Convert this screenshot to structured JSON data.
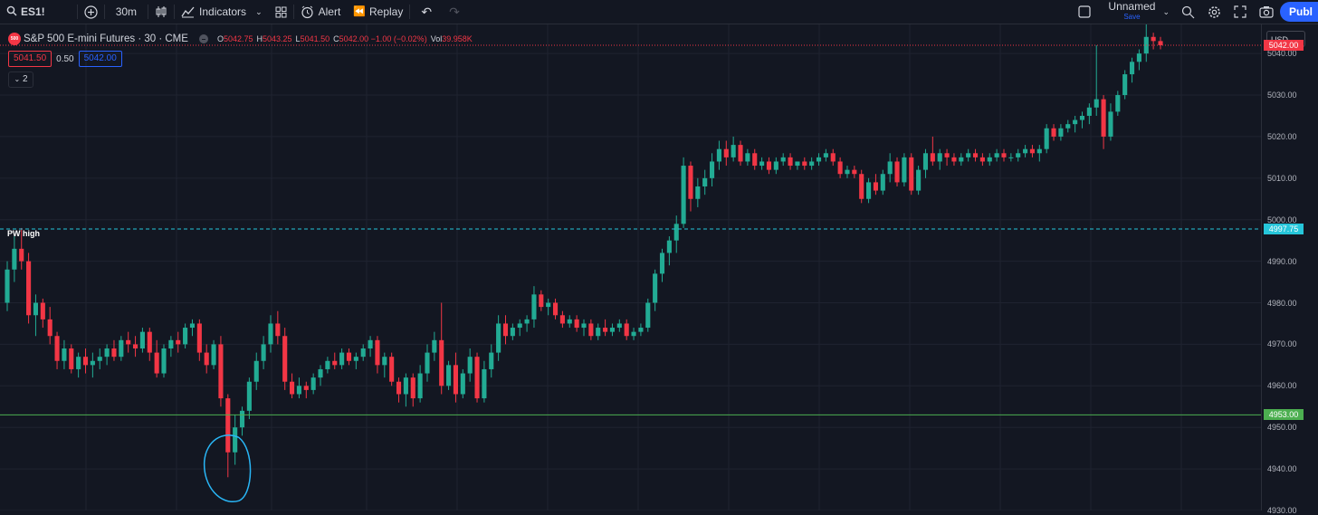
{
  "toolbar": {
    "symbol": "ES1!",
    "interval": "30m",
    "indicators_label": "Indicators",
    "alert_label": "Alert",
    "replay_label": "Replay",
    "layout_name": "Unnamed",
    "layout_save": "Save",
    "publish_label": "Publ"
  },
  "legend": {
    "badge": "500",
    "title": "S&P 500 E-mini Futures · 30 · CME",
    "open_key": "O",
    "open": "5042.75",
    "high_key": "H",
    "high": "5043.25",
    "low_key": "L",
    "low": "5041.50",
    "close_key": "C",
    "close": "5042.00 −1.00 (−0.02%)",
    "vol_key": "Vol",
    "vol": "39.958K"
  },
  "quotes": {
    "bid": "5041.50",
    "spread": "0.50",
    "ask": "5042.00"
  },
  "collapse_label": "2",
  "currency": "USD",
  "annotations": {
    "pw_high_label": "PW high"
  },
  "colors": {
    "up": "#22ab94",
    "down": "#f23645",
    "pw_high": "#26c6da",
    "support": "#4caf50",
    "circle": "#29b6f6",
    "background": "#131722"
  },
  "price_scale": {
    "ticks": [
      "5040.00",
      "5030.00",
      "5020.00",
      "5010.00",
      "5000.00",
      "4990.00",
      "4980.00",
      "4970.00",
      "4960.00",
      "4950.00",
      "4940.00",
      "4930.00"
    ],
    "last_price": "5042.00",
    "pw_high": "4997.75",
    "support": "4953.00"
  },
  "chart_data": {
    "type": "candlestick",
    "y_range": [
      4930,
      5047
    ],
    "horizontal_lines": [
      {
        "label": "PW high",
        "value": 4997.75
      },
      {
        "label": "",
        "value": 4953.0
      },
      {
        "label": "",
        "value": 5042.0
      }
    ],
    "candles": [
      [
        4980,
        4990,
        4978,
        4988
      ],
      [
        4988,
        4996,
        4985,
        4993
      ],
      [
        4993,
        4998,
        4988,
        4990
      ],
      [
        4990,
        4992,
        4975,
        4977
      ],
      [
        4977,
        4982,
        4972,
        4980
      ],
      [
        4980,
        4981,
        4974,
        4976
      ],
      [
        4976,
        4979,
        4970,
        4972
      ],
      [
        4972,
        4973,
        4964,
        4966
      ],
      [
        4966,
        4971,
        4964,
        4969
      ],
      [
        4969,
        4970,
        4963,
        4964
      ],
      [
        4964,
        4968,
        4962,
        4967
      ],
      [
        4967,
        4969,
        4963,
        4965
      ],
      [
        4965,
        4968,
        4962,
        4966
      ],
      [
        4966,
        4969,
        4964,
        4967
      ],
      [
        4967,
        4970,
        4965,
        4969
      ],
      [
        4969,
        4971,
        4966,
        4967
      ],
      [
        4967,
        4972,
        4966,
        4971
      ],
      [
        4971,
        4973,
        4968,
        4970
      ],
      [
        4970,
        4972,
        4967,
        4969
      ],
      [
        4969,
        4974,
        4968,
        4973
      ],
      [
        4973,
        4974,
        4966,
        4968
      ],
      [
        4968,
        4971,
        4962,
        4963
      ],
      [
        4963,
        4970,
        4962,
        4969
      ],
      [
        4969,
        4972,
        4967,
        4971
      ],
      [
        4971,
        4973,
        4968,
        4970
      ],
      [
        4970,
        4975,
        4969,
        4974
      ],
      [
        4974,
        4976,
        4972,
        4975
      ],
      [
        4975,
        4976,
        4966,
        4968
      ],
      [
        4968,
        4970,
        4963,
        4965
      ],
      [
        4965,
        4971,
        4964,
        4970
      ],
      [
        4970,
        4972,
        4955,
        4957
      ],
      [
        4957,
        4958,
        4938,
        4944
      ],
      [
        4944,
        4953,
        4941,
        4950
      ],
      [
        4950,
        4955,
        4948,
        4954
      ],
      [
        4954,
        4962,
        4952,
        4961
      ],
      [
        4961,
        4968,
        4959,
        4966
      ],
      [
        4966,
        4972,
        4964,
        4970
      ],
      [
        4970,
        4977,
        4968,
        4975
      ],
      [
        4975,
        4978,
        4970,
        4972
      ],
      [
        4972,
        4974,
        4959,
        4961
      ],
      [
        4961,
        4963,
        4957,
        4958
      ],
      [
        4958,
        4962,
        4957,
        4960
      ],
      [
        4960,
        4961,
        4957,
        4959
      ],
      [
        4959,
        4963,
        4958,
        4962
      ],
      [
        4962,
        4965,
        4960,
        4964
      ],
      [
        4964,
        4967,
        4963,
        4966
      ],
      [
        4966,
        4968,
        4964,
        4965
      ],
      [
        4965,
        4969,
        4964,
        4968
      ],
      [
        4968,
        4969,
        4965,
        4966
      ],
      [
        4966,
        4968,
        4964,
        4967
      ],
      [
        4967,
        4970,
        4966,
        4969
      ],
      [
        4969,
        4972,
        4967,
        4971
      ],
      [
        4971,
        4972,
        4963,
        4965
      ],
      [
        4965,
        4968,
        4962,
        4967
      ],
      [
        4967,
        4968,
        4960,
        4961
      ],
      [
        4961,
        4962,
        4956,
        4958
      ],
      [
        4958,
        4963,
        4955,
        4962
      ],
      [
        4962,
        4963,
        4955,
        4957
      ],
      [
        4957,
        4965,
        4956,
        4963
      ],
      [
        4963,
        4970,
        4961,
        4968
      ],
      [
        4968,
        4973,
        4966,
        4971
      ],
      [
        4971,
        4980,
        4958,
        4960
      ],
      [
        4960,
        4966,
        4959,
        4965
      ],
      [
        4965,
        4968,
        4956,
        4958
      ],
      [
        4958,
        4964,
        4957,
        4963
      ],
      [
        4963,
        4969,
        4961,
        4967
      ],
      [
        4967,
        4968,
        4956,
        4957
      ],
      [
        4957,
        4966,
        4956,
        4964
      ],
      [
        4964,
        4970,
        4962,
        4968
      ],
      [
        4968,
        4977,
        4966,
        4975
      ],
      [
        4975,
        4977,
        4970,
        4972
      ],
      [
        4972,
        4975,
        4971,
        4974
      ],
      [
        4974,
        4976,
        4972,
        4975
      ],
      [
        4975,
        4977,
        4973,
        4976
      ],
      [
        4976,
        4984,
        4974,
        4982
      ],
      [
        4982,
        4983,
        4978,
        4979
      ],
      [
        4979,
        4981,
        4977,
        4980
      ],
      [
        4980,
        4981,
        4976,
        4977
      ],
      [
        4977,
        4978,
        4974,
        4975
      ],
      [
        4975,
        4977,
        4974,
        4976
      ],
      [
        4976,
        4977,
        4973,
        4974
      ],
      [
        4974,
        4976,
        4972,
        4975
      ],
      [
        4975,
        4976,
        4971,
        4972
      ],
      [
        4972,
        4975,
        4971,
        4974
      ],
      [
        4974,
        4976,
        4972,
        4973
      ],
      [
        4973,
        4975,
        4972,
        4974
      ],
      [
        4974,
        4976,
        4973,
        4975
      ],
      [
        4975,
        4976,
        4971,
        4972
      ],
      [
        4972,
        4974,
        4971,
        4973
      ],
      [
        4973,
        4975,
        4972,
        4974
      ],
      [
        4974,
        4981,
        4973,
        4980
      ],
      [
        4980,
        4988,
        4978,
        4987
      ],
      [
        4987,
        4993,
        4985,
        4992
      ],
      [
        4992,
        4996,
        4989,
        4995
      ],
      [
        4995,
        5001,
        4992,
        4999
      ],
      [
        4999,
        5015,
        4998,
        5013
      ],
      [
        5013,
        5014,
        5002,
        5005
      ],
      [
        5005,
        5010,
        5003,
        5008
      ],
      [
        5008,
        5012,
        5006,
        5010
      ],
      [
        5010,
        5016,
        5008,
        5014
      ],
      [
        5014,
        5019,
        5012,
        5017
      ],
      [
        5017,
        5019,
        5013,
        5015
      ],
      [
        5015,
        5020,
        5014,
        5018
      ],
      [
        5018,
        5019,
        5013,
        5014
      ],
      [
        5014,
        5017,
        5013,
        5016
      ],
      [
        5016,
        5017,
        5012,
        5013
      ],
      [
        5013,
        5015,
        5012,
        5014
      ],
      [
        5014,
        5015,
        5011,
        5012
      ],
      [
        5012,
        5015,
        5011,
        5014
      ],
      [
        5014,
        5016,
        5013,
        5015
      ],
      [
        5015,
        5016,
        5012,
        5013
      ],
      [
        5013,
        5014,
        5012,
        5014
      ],
      [
        5014,
        5015,
        5012,
        5013
      ],
      [
        5013,
        5015,
        5012,
        5014
      ],
      [
        5014,
        5016,
        5013,
        5015
      ],
      [
        5015,
        5017,
        5014,
        5016
      ],
      [
        5016,
        5017,
        5013,
        5014
      ],
      [
        5014,
        5015,
        5010,
        5011
      ],
      [
        5011,
        5013,
        5010,
        5012
      ],
      [
        5012,
        5013,
        5010,
        5011
      ],
      [
        5011,
        5012,
        5004,
        5005
      ],
      [
        5005,
        5010,
        5004,
        5009
      ],
      [
        5009,
        5011,
        5006,
        5007
      ],
      [
        5007,
        5012,
        5006,
        5011
      ],
      [
        5011,
        5016,
        5009,
        5014
      ],
      [
        5014,
        5015,
        5008,
        5009
      ],
      [
        5009,
        5016,
        5008,
        5015
      ],
      [
        5015,
        5016,
        5006,
        5007
      ],
      [
        5007,
        5013,
        5006,
        5012
      ],
      [
        5012,
        5017,
        5010,
        5016
      ],
      [
        5016,
        5020,
        5013,
        5014
      ],
      [
        5014,
        5017,
        5012,
        5016
      ],
      [
        5016,
        5017,
        5013,
        5015
      ],
      [
        5015,
        5016,
        5013,
        5014
      ],
      [
        5014,
        5016,
        5013,
        5015
      ],
      [
        5015,
        5017,
        5014,
        5016
      ],
      [
        5016,
        5017,
        5014,
        5015
      ],
      [
        5015,
        5016,
        5013,
        5014
      ],
      [
        5014,
        5016,
        5013,
        5015
      ],
      [
        5015,
        5017,
        5014,
        5016
      ],
      [
        5016,
        5017,
        5014,
        5015
      ],
      [
        5015,
        5016,
        5014,
        5015
      ],
      [
        5015,
        5017,
        5014,
        5016
      ],
      [
        5016,
        5018,
        5015,
        5017
      ],
      [
        5017,
        5018,
        5015,
        5016
      ],
      [
        5016,
        5018,
        5014,
        5017
      ],
      [
        5017,
        5023,
        5016,
        5022
      ],
      [
        5022,
        5023,
        5019,
        5020
      ],
      [
        5020,
        5023,
        5019,
        5022
      ],
      [
        5022,
        5024,
        5021,
        5023
      ],
      [
        5023,
        5025,
        5021,
        5024
      ],
      [
        5024,
        5026,
        5022,
        5025
      ],
      [
        5025,
        5028,
        5023,
        5027
      ],
      [
        5027,
        5042,
        5025,
        5029
      ],
      [
        5029,
        5030,
        5017,
        5020
      ],
      [
        5020,
        5028,
        5019,
        5026
      ],
      [
        5026,
        5031,
        5025,
        5030
      ],
      [
        5030,
        5036,
        5029,
        5035
      ],
      [
        5035,
        5039,
        5033,
        5038
      ],
      [
        5038,
        5041,
        5036,
        5040
      ],
      [
        5040,
        5047,
        5038,
        5044
      ],
      [
        5044,
        5045,
        5041,
        5043
      ],
      [
        5043,
        5044,
        5041,
        5042
      ]
    ]
  }
}
